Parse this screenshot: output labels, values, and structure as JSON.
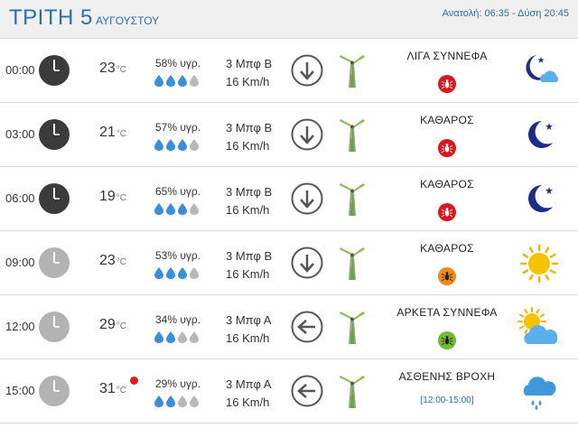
{
  "header": {
    "day": "ΤΡΙΤΗ 5",
    "month": "ΑΥΓΟΥΣΤΟΥ",
    "sun": "Ανατολή: 06:35 - Δύση 20:45"
  },
  "colors": {
    "accent": "#2a6fb0",
    "clock_dark": "#3b3b3b",
    "clock_light": "#b3b3b3",
    "drop_filled": "#3a8fd6",
    "drop_empty": "#b8b8b8",
    "badge_red": "#d9181b",
    "badge_orange": "#f08a1c",
    "badge_green": "#6dbd2c",
    "hot_dot": "#e31b1b"
  },
  "rows": [
    {
      "time": "00:00",
      "clock": "dark",
      "temp": "23",
      "unit": "°C",
      "hot": false,
      "humidity": "58% υγρ.",
      "drops_filled": 3,
      "wind_bf": "3 Μπφ Β",
      "wind_kmh": "16 Km/h",
      "arrow": "down",
      "condition": "ΛΙΓΑ ΣΥΝΝΕΦΑ",
      "condition_sub": "",
      "badge": "red",
      "icon": "moon-cloud-icon"
    },
    {
      "time": "03:00",
      "clock": "dark",
      "temp": "21",
      "unit": "°C",
      "hot": false,
      "humidity": "57% υγρ.",
      "drops_filled": 3,
      "wind_bf": "3 Μπφ Β",
      "wind_kmh": "16 Km/h",
      "arrow": "down",
      "condition": "ΚΑΘΑΡΟΣ",
      "condition_sub": "",
      "badge": "red",
      "icon": "moon-icon"
    },
    {
      "time": "06:00",
      "clock": "dark",
      "temp": "19",
      "unit": "°C",
      "hot": false,
      "humidity": "65% υγρ.",
      "drops_filled": 3,
      "wind_bf": "3 Μπφ Β",
      "wind_kmh": "16 Km/h",
      "arrow": "down",
      "condition": "ΚΑΘΑΡΟΣ",
      "condition_sub": "",
      "badge": "red",
      "icon": "moon-icon"
    },
    {
      "time": "09:00",
      "clock": "light",
      "temp": "23",
      "unit": "°C",
      "hot": false,
      "humidity": "53% υγρ.",
      "drops_filled": 3,
      "wind_bf": "3 Μπφ Β",
      "wind_kmh": "16 Km/h",
      "arrow": "down",
      "condition": "ΚΑΘΑΡΟΣ",
      "condition_sub": "",
      "badge": "orange",
      "icon": "sun-icon"
    },
    {
      "time": "12:00",
      "clock": "light",
      "temp": "29",
      "unit": "°C",
      "hot": false,
      "humidity": "34% υγρ.",
      "drops_filled": 2,
      "wind_bf": "3 Μπφ Α",
      "wind_kmh": "16 Km/h",
      "arrow": "left",
      "condition": "ΑΡΚΕΤΑ ΣΥΝΝΕΦΑ",
      "condition_sub": "",
      "badge": "green",
      "icon": "sun-cloud-icon"
    },
    {
      "time": "15:00",
      "clock": "light",
      "temp": "31",
      "unit": "°C",
      "hot": true,
      "humidity": "29% υγρ.",
      "drops_filled": 2,
      "wind_bf": "3 Μπφ Α",
      "wind_kmh": "16 Km/h",
      "arrow": "left",
      "condition": "ΑΣΘΕΝΗΣ ΒΡΟΧΗ",
      "condition_sub": "[12:00-15:00]",
      "badge": "none",
      "icon": "rain-cloud-icon"
    }
  ]
}
